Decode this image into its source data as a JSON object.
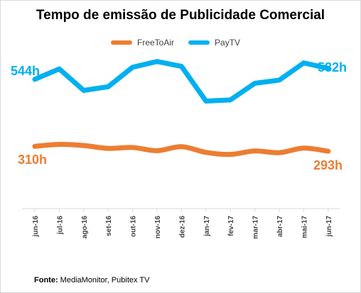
{
  "chart_data": {
    "type": "line",
    "title": "Tempo de emissão de Publicidade Comercial",
    "categories": [
      "jun-16",
      "jul-16",
      "ago-16",
      "set-16",
      "out-16",
      "nov-16",
      "dez-16",
      "jan-17",
      "fev-17",
      "mar-17",
      "abr-17",
      "mai-17",
      "jun-17"
    ],
    "ylim": [
      150,
      620
    ],
    "grid": false,
    "legend_position": "top",
    "series": [
      {
        "name": "FreeToAir",
        "color": "#ED7D31",
        "values": [
          310,
          317,
          313,
          303,
          306,
          295,
          309,
          289,
          282,
          294,
          288,
          304,
          293
        ],
        "start_label": "310h",
        "end_label": "293h"
      },
      {
        "name": "PayTV",
        "color": "#00B0F0",
        "values": [
          544,
          580,
          505,
          518,
          586,
          606,
          589,
          468,
          472,
          530,
          541,
          601,
          582
        ],
        "start_label": "544h",
        "end_label": "582h"
      }
    ],
    "source_label": "Fonte:",
    "source_text": " MediaMonitor, Pubitex TV"
  }
}
